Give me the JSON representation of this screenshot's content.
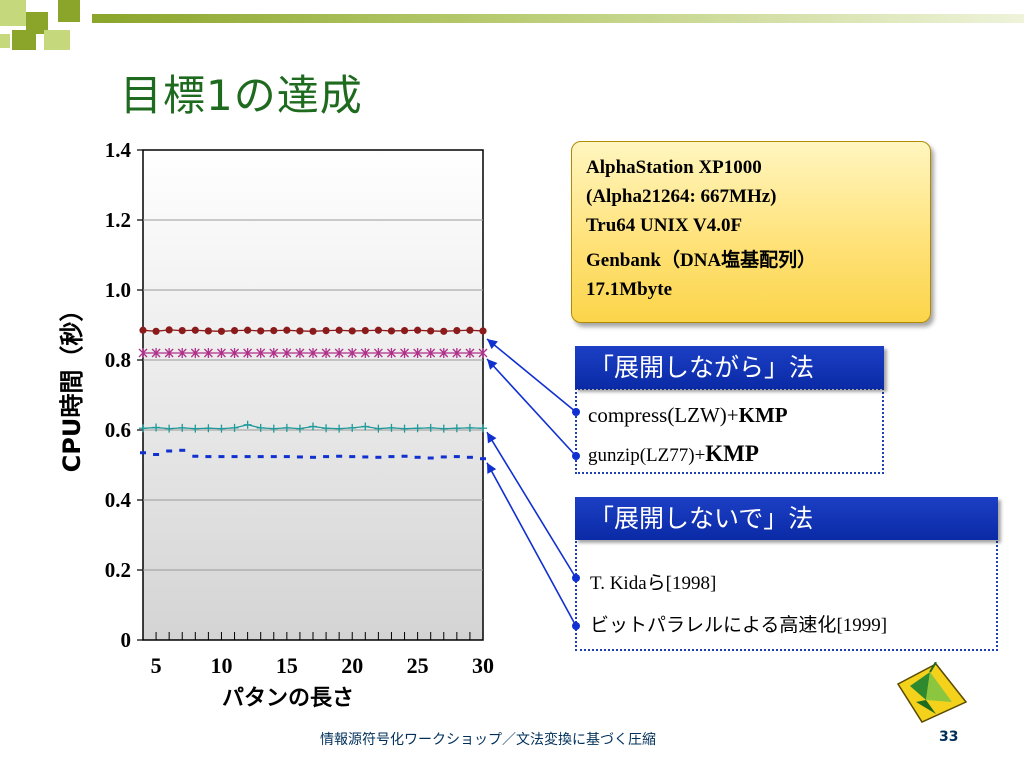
{
  "slide": {
    "title": "目標1の達成",
    "footer": "情報源符号化ワークショップ／文法変換に基づく圧縮",
    "page_number": "33",
    "accent_color": "#1e6a1e",
    "logo_icon": "origami-crane-icon"
  },
  "info_box": {
    "line1": "AlphaStation XP1000",
    "line2": "(Alpha21264: 667MHz)",
    "line3": "Tru64 UNIX V4.0F",
    "line4": "Genbank（DNA塩基配列）",
    "line5": "17.1Mbyte"
  },
  "section_expand": {
    "heading": "「展開しながら」法",
    "item1_prefix": "compress(LZW)+",
    "item1_bold": "KMP",
    "item2_prefix": "gunzip(LZ77)+",
    "item2_bold": "KMP"
  },
  "section_noexpand": {
    "heading": "「展開しないで」法",
    "item1_prefix": "T. Kida",
    "item1_jp": "ら",
    "item1_year": "[1998]",
    "item2_jp": "ビットパラレルによる高速化",
    "item2_year": "[1999]"
  },
  "chart_data": {
    "type": "line",
    "xlabel": "パタンの長さ",
    "ylabel": "CPU時間（秒）",
    "xlim": [
      4,
      30
    ],
    "ylim": [
      0,
      1.4
    ],
    "xticks": [
      5,
      10,
      15,
      20,
      25,
      30
    ],
    "ytick_labels": [
      "0",
      "0.2",
      "0.4",
      "0.6",
      "0.8",
      "1.0",
      "1.2",
      "1.4"
    ],
    "grid": true,
    "x": [
      4,
      5,
      6,
      7,
      8,
      9,
      10,
      11,
      12,
      13,
      14,
      15,
      16,
      17,
      18,
      19,
      20,
      21,
      22,
      23,
      24,
      25,
      26,
      27,
      28,
      29,
      30
    ],
    "series": [
      {
        "color": "#8b1a1a",
        "marker": "dot",
        "values": [
          0.885,
          0.882,
          0.886,
          0.884,
          0.885,
          0.883,
          0.882,
          0.884,
          0.885,
          0.883,
          0.884,
          0.885,
          0.883,
          0.882,
          0.884,
          0.885,
          0.883,
          0.884,
          0.885,
          0.883,
          0.884,
          0.885,
          0.883,
          0.882,
          0.884,
          0.885,
          0.883
        ]
      },
      {
        "color": "#b0308a",
        "marker": "star",
        "values": [
          0.82,
          0.82,
          0.82,
          0.82,
          0.82,
          0.82,
          0.82,
          0.82,
          0.82,
          0.82,
          0.82,
          0.82,
          0.82,
          0.82,
          0.82,
          0.82,
          0.82,
          0.82,
          0.82,
          0.82,
          0.82,
          0.82,
          0.82,
          0.82,
          0.82,
          0.82,
          0.82
        ]
      },
      {
        "color": "#1e9a9a",
        "marker": "plus",
        "values": [
          0.605,
          0.607,
          0.604,
          0.606,
          0.604,
          0.605,
          0.604,
          0.606,
          0.615,
          0.606,
          0.604,
          0.606,
          0.604,
          0.61,
          0.605,
          0.604,
          0.606,
          0.61,
          0.604,
          0.606,
          0.604,
          0.605,
          0.606,
          0.604,
          0.605,
          0.606,
          0.605
        ]
      },
      {
        "color": "#1030d0",
        "marker": "dash",
        "values": [
          0.535,
          0.53,
          0.54,
          0.542,
          0.525,
          0.524,
          0.524,
          0.524,
          0.524,
          0.524,
          0.524,
          0.524,
          0.523,
          0.522,
          0.524,
          0.525,
          0.524,
          0.523,
          0.522,
          0.524,
          0.525,
          0.522,
          0.52,
          0.523,
          0.524,
          0.522,
          0.518
        ]
      }
    ]
  }
}
